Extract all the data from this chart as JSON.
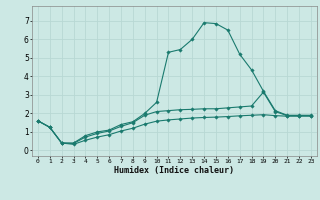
{
  "xlabel": "Humidex (Indice chaleur)",
  "bg_color": "#cce8e4",
  "grid_color": "#b8d8d4",
  "line_color": "#1a7a6e",
  "x_ticks": [
    0,
    1,
    2,
    3,
    4,
    5,
    6,
    7,
    8,
    9,
    10,
    11,
    12,
    13,
    14,
    15,
    16,
    17,
    18,
    19,
    20,
    21,
    22,
    23
  ],
  "y_ticks": [
    0,
    1,
    2,
    3,
    4,
    5,
    6,
    7
  ],
  "xlim": [
    -0.5,
    23.5
  ],
  "ylim": [
    -0.3,
    7.8
  ],
  "curve1_x": [
    0,
    1,
    2,
    3,
    4,
    5,
    6,
    7,
    8,
    9,
    10,
    11,
    12,
    13,
    14,
    15,
    16,
    17,
    18,
    19,
    20,
    21,
    22,
    23
  ],
  "curve1_y": [
    1.6,
    1.25,
    0.4,
    0.4,
    0.8,
    1.0,
    1.1,
    1.4,
    1.55,
    2.0,
    2.6,
    5.3,
    5.45,
    6.0,
    6.9,
    6.85,
    6.5,
    5.2,
    4.35,
    3.2,
    2.15,
    1.9,
    1.9,
    1.9
  ],
  "curve2_x": [
    0,
    1,
    2,
    3,
    4,
    5,
    6,
    7,
    8,
    9,
    10,
    11,
    12,
    13,
    14,
    15,
    16,
    17,
    18,
    19,
    20,
    21,
    22,
    23
  ],
  "curve2_y": [
    1.6,
    1.25,
    0.4,
    0.38,
    0.72,
    0.92,
    1.05,
    1.3,
    1.5,
    1.9,
    2.1,
    2.15,
    2.2,
    2.22,
    2.25,
    2.25,
    2.3,
    2.35,
    2.4,
    3.15,
    2.1,
    1.88,
    1.88,
    1.88
  ],
  "curve3_x": [
    0,
    1,
    2,
    3,
    4,
    5,
    6,
    7,
    8,
    9,
    10,
    11,
    12,
    13,
    14,
    15,
    16,
    17,
    18,
    19,
    20,
    21,
    22,
    23
  ],
  "curve3_y": [
    1.6,
    1.25,
    0.4,
    0.33,
    0.55,
    0.72,
    0.85,
    1.05,
    1.2,
    1.42,
    1.58,
    1.65,
    1.7,
    1.75,
    1.78,
    1.8,
    1.83,
    1.87,
    1.9,
    1.93,
    1.88,
    1.85,
    1.85,
    1.85
  ]
}
